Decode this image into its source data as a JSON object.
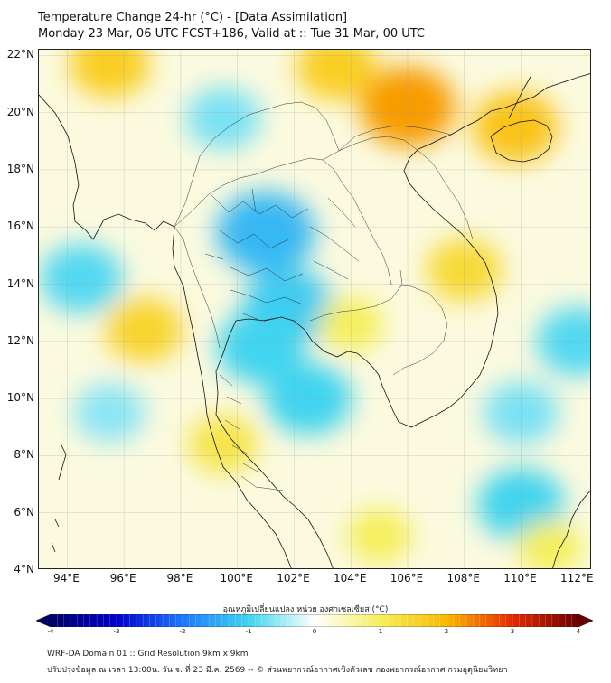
{
  "header": {
    "title_line1": "Temperature Change 24-hr (°C) - [Data Assimilation]",
    "title_line2": "Monday 23 Mar, 06 UTC FCST+186, Valid at :: Tue 31 Mar, 00 UTC"
  },
  "map": {
    "lat_labels": [
      "22°N",
      "20°N",
      "18°N",
      "16°N",
      "14°N",
      "12°N",
      "10°N",
      "8°N",
      "6°N",
      "4°N"
    ],
    "lon_labels": [
      "94°E",
      "96°E",
      "98°E",
      "100°E",
      "102°E",
      "104°E",
      "106°E",
      "108°E",
      "110°E",
      "112°E"
    ],
    "lat_values": [
      22,
      20,
      18,
      16,
      14,
      12,
      10,
      8,
      6,
      4
    ],
    "lon_values": [
      94,
      96,
      98,
      100,
      102,
      104,
      106,
      108,
      110,
      112
    ],
    "extent": {
      "lon_min": 93,
      "lon_max": 112.5,
      "lat_min": 4,
      "lat_max": 22.2
    },
    "field_unit": "°C",
    "warm_areas": [
      {
        "name": "north-vietnam-laos",
        "lon": 106,
        "lat": 20.2,
        "value": 2.2
      },
      {
        "name": "north-laos-yunnan",
        "lon": 103.5,
        "lat": 21.6,
        "value": 1.6
      },
      {
        "name": "hainan",
        "lon": 109.8,
        "lat": 19.5,
        "value": 1.8
      },
      {
        "name": "myanmar-north",
        "lon": 95.5,
        "lat": 21.7,
        "value": 1.6
      },
      {
        "name": "andaman-sea",
        "lon": 96.7,
        "lat": 12.4,
        "value": 1.5
      },
      {
        "name": "central-vietnam",
        "lon": 108,
        "lat": 14.5,
        "value": 1.4
      },
      {
        "name": "gulf-of-thailand-north",
        "lon": 104,
        "lat": 12.6,
        "value": 1.0
      },
      {
        "name": "gulf-of-thailand-west",
        "lon": 99.5,
        "lat": 8.4,
        "value": 1.2
      },
      {
        "name": "malaysia-east",
        "lon": 105,
        "lat": 5.2,
        "value": 1.0
      },
      {
        "name": "south-china-sea-south",
        "lon": 111,
        "lat": 4.8,
        "value": 1.0
      }
    ],
    "cool_areas": [
      {
        "name": "thailand-northeast",
        "lon": 101,
        "lat": 15.8,
        "value": -1.3
      },
      {
        "name": "thailand-central",
        "lon": 101.8,
        "lat": 13.2,
        "value": -1.1
      },
      {
        "name": "bay-of-bengal-east",
        "lon": 94.5,
        "lat": 14.2,
        "value": -0.9
      },
      {
        "name": "east-of-gulf",
        "lon": 100.8,
        "lat": 11.8,
        "value": -1.0
      },
      {
        "name": "gulf-of-thailand-center",
        "lon": 102.5,
        "lat": 10,
        "value": -1.0
      },
      {
        "name": "south-china-sea-center",
        "lon": 110,
        "lat": 9.5,
        "value": -0.7
      },
      {
        "name": "south-china-sea-east",
        "lon": 112,
        "lat": 12,
        "value": -0.9
      },
      {
        "name": "south-china-sea-southeast",
        "lon": 110,
        "lat": 6.3,
        "value": -1.0
      },
      {
        "name": "myanmar-laos-north",
        "lon": 99.5,
        "lat": 19.8,
        "value": -0.7
      },
      {
        "name": "andaman-south",
        "lon": 95.5,
        "lat": 9.5,
        "value": -0.6
      }
    ]
  },
  "colorbar": {
    "title": "อุณหภูมิเปลี่ยนแปลง หน่วย องศาเซลเซียส (°C)",
    "min": -4,
    "max": 4,
    "tick_labels": [
      "-4",
      "-3",
      "-2",
      "-1",
      "0",
      "1",
      "2",
      "3",
      "4"
    ],
    "tick_values": [
      -4,
      -3,
      -2,
      -1,
      0,
      1,
      2,
      3,
      4
    ],
    "stops": [
      {
        "v": -4,
        "color": "#000066"
      },
      {
        "v": -3,
        "color": "#0000cc"
      },
      {
        "v": -2,
        "color": "#1e78ff"
      },
      {
        "v": -1,
        "color": "#3fd4ef"
      },
      {
        "v": 0,
        "color": "#ffffff"
      },
      {
        "v": 1,
        "color": "#f5ef5a"
      },
      {
        "v": 2,
        "color": "#fbb800"
      },
      {
        "v": 3,
        "color": "#e62a00"
      },
      {
        "v": 4,
        "color": "#6b0000"
      }
    ]
  },
  "footer": {
    "line1": "WRF-DA Domain 01 :: Grid Resolution 9km x 9km",
    "line2": "ปรับปรุงข้อมูล ณ เวลา 13:00น. วัน จ. ที่ 23 มี.ค. 2569 -- © ส่วนพยากรณ์อากาศเชิงตัวเลข กองพยากรณ์อากาศ กรมอุตุนิยมวิทยา"
  }
}
